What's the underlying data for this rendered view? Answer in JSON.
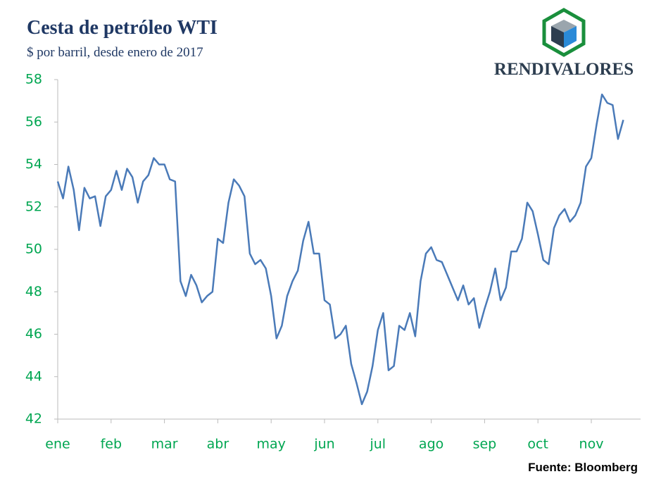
{
  "chart_data": {
    "type": "line",
    "title": "Cesta de petróleo WTI",
    "subtitle": "$ por barril, desde enero de 2017",
    "source": "Fuente: Bloomberg",
    "brand": "RENDIVALORES",
    "color": "#4a7ab8",
    "categories": [
      "ene",
      null,
      null,
      null,
      null,
      null,
      null,
      null,
      null,
      null,
      "feb",
      null,
      null,
      null,
      null,
      null,
      null,
      null,
      null,
      null,
      "mar",
      null,
      null,
      null,
      null,
      null,
      null,
      null,
      null,
      null,
      "abr",
      null,
      null,
      null,
      null,
      null,
      null,
      null,
      null,
      null,
      "may",
      null,
      null,
      null,
      null,
      null,
      null,
      null,
      null,
      null,
      "jun",
      null,
      null,
      null,
      null,
      null,
      null,
      null,
      null,
      null,
      "jul",
      null,
      null,
      null,
      null,
      null,
      null,
      null,
      null,
      null,
      "ago",
      null,
      null,
      null,
      null,
      null,
      null,
      null,
      null,
      null,
      "sep",
      null,
      null,
      null,
      null,
      null,
      null,
      null,
      null,
      null,
      "oct",
      null,
      null,
      null,
      null,
      null,
      null,
      null,
      null,
      null,
      "nov",
      null,
      null,
      null,
      null,
      null,
      null
    ],
    "values": [
      53.2,
      52.4,
      53.9,
      52.8,
      50.9,
      52.9,
      52.4,
      52.5,
      51.1,
      52.5,
      52.8,
      53.7,
      52.8,
      53.8,
      53.4,
      52.2,
      53.2,
      53.5,
      54.3,
      54.0,
      54.0,
      53.3,
      53.2,
      48.5,
      47.8,
      48.8,
      48.3,
      47.5,
      47.8,
      48.0,
      50.5,
      50.3,
      52.2,
      53.3,
      53.0,
      52.5,
      49.8,
      49.3,
      49.5,
      49.1,
      47.8,
      45.8,
      46.4,
      47.8,
      48.5,
      49.0,
      50.4,
      51.3,
      49.8,
      49.8,
      47.6,
      47.4,
      45.8,
      46.0,
      46.4,
      44.6,
      43.7,
      42.7,
      43.3,
      44.5,
      46.2,
      47.0,
      44.3,
      44.5,
      46.4,
      46.2,
      47.0,
      45.9,
      48.5,
      49.8,
      50.1,
      49.5,
      49.4,
      48.8,
      48.2,
      47.6,
      48.3,
      47.4,
      47.7,
      46.3,
      47.2,
      48.0,
      49.1,
      47.6,
      48.2,
      49.9,
      49.9,
      50.5,
      52.2,
      51.8,
      50.7,
      49.5,
      49.3,
      51.0,
      51.6,
      51.9,
      51.3,
      51.6,
      52.2,
      53.9,
      54.3,
      55.9,
      57.3,
      56.9,
      56.8,
      55.2,
      56.1
    ],
    "ylim": [
      42,
      58
    ],
    "yticks": [
      42,
      44,
      46,
      48,
      50,
      52,
      54,
      56,
      58
    ]
  }
}
